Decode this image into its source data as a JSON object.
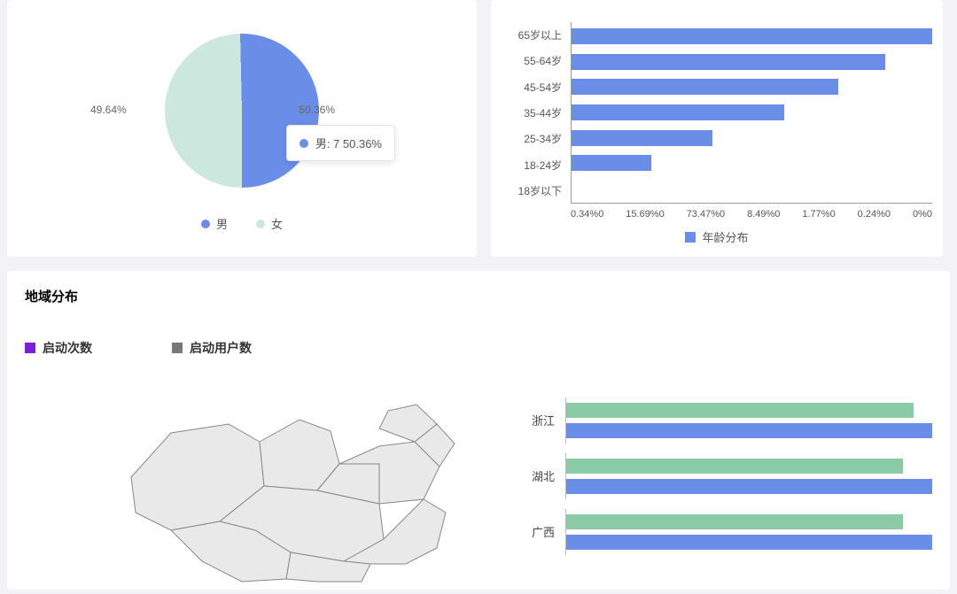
{
  "colors": {
    "blue": "#6a8de8",
    "mint": "#cce7de",
    "ink": "#333333",
    "axis": "#999999",
    "map_fill": "#e9e9e9",
    "map_stroke": "#888888",
    "green_bar": "#8acaa7",
    "tab_purple": "#7d1fd8",
    "tab_gray": "#777777"
  },
  "gender_pie": {
    "type": "pie",
    "slices": [
      {
        "key": "male",
        "label": "男",
        "pct": 50.36,
        "color": "#6a8de8"
      },
      {
        "key": "female",
        "label": "女",
        "pct": 49.64,
        "color": "#cce7de"
      }
    ],
    "pct_left_text": "49.64%",
    "pct_right_text": "50.36%",
    "tooltip": {
      "marker_color": "#6a8de8",
      "text": "男: 7 50.36%"
    },
    "legend": [
      {
        "label": "男",
        "color": "#6a8de8"
      },
      {
        "label": "女",
        "color": "#cce7de"
      }
    ]
  },
  "age_bar": {
    "type": "bar-horizontal",
    "categories": [
      "65岁以上",
      "55-64岁",
      "45-54岁",
      "35-44岁",
      "25-34岁",
      "18-24岁",
      "18岁以下"
    ],
    "values_pct_of_max": [
      100,
      87,
      74,
      59,
      39,
      22,
      0
    ],
    "bar_color": "#6a8de8",
    "xticks": [
      "0.34%0",
      "15.69%0",
      "73.47%0",
      "8.49%0",
      "1.77%0",
      "0.24%0",
      "0%0"
    ],
    "legend_label": "年龄分布",
    "legend_color": "#6a8de8"
  },
  "region_section": {
    "title": "地域分布",
    "tabs": [
      {
        "label": "启动次数",
        "swatch": "#7d1fd8"
      },
      {
        "label": "启动用户数",
        "swatch": "#777777"
      }
    ],
    "region_bars": {
      "type": "bar-horizontal-grouped",
      "colors": {
        "a": "#8acaa7",
        "b": "#6a8de8"
      },
      "rows": [
        {
          "label": "浙江",
          "a_pct": 95,
          "b_pct": 100
        },
        {
          "label": "湖北",
          "a_pct": 92,
          "b_pct": 100
        },
        {
          "label": "广西",
          "a_pct": 92,
          "b_pct": 100
        }
      ]
    }
  }
}
